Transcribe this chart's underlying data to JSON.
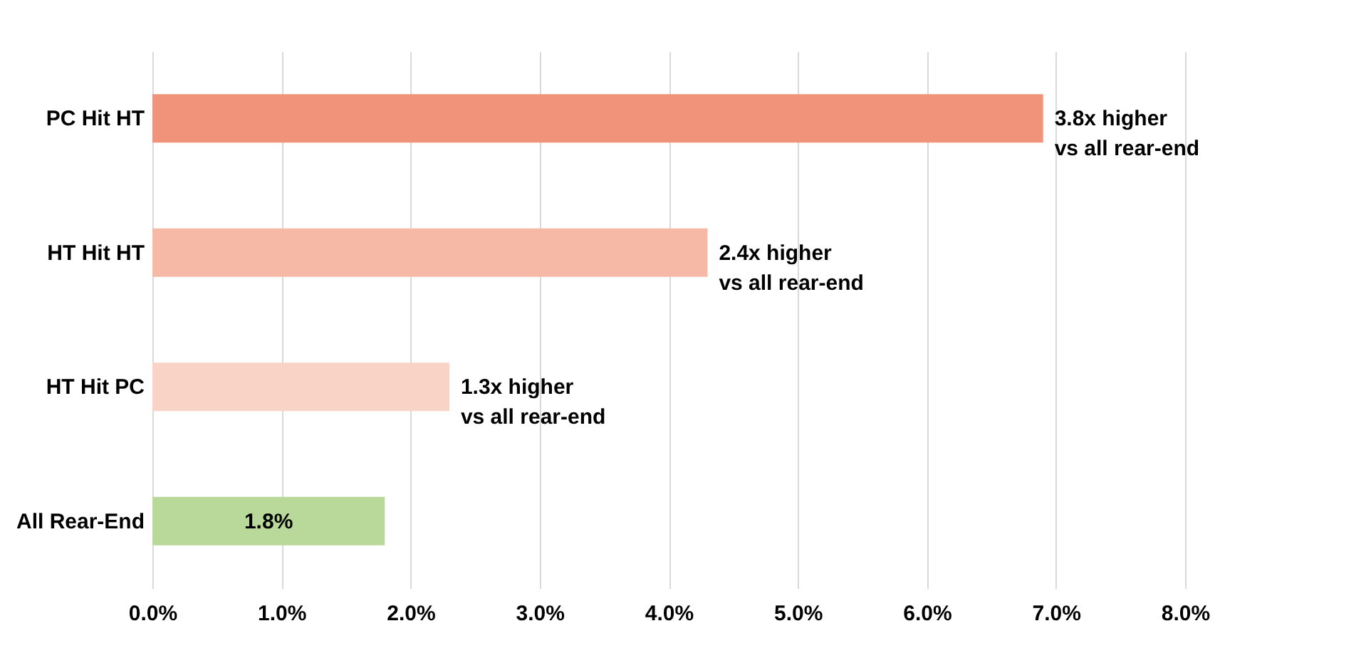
{
  "chart_data": {
    "type": "bar",
    "orientation": "horizontal",
    "categories": [
      "PC Hit HT",
      "HT Hit HT",
      "HT Hit PC",
      "All Rear-End"
    ],
    "values": [
      6.9,
      4.3,
      2.3,
      1.8
    ],
    "colors": [
      "#f0937a",
      "#f5b9a5",
      "#fad3c7",
      "#b9d99b"
    ],
    "value_labels": [
      null,
      null,
      null,
      "1.8%"
    ],
    "annotations": [
      {
        "text": "3.8x higher\nvs all rear-end",
        "x": 6.9,
        "y": "PC Hit HT"
      },
      {
        "text": "2.4x higher\nvs all rear-end",
        "x": 4.3,
        "y": "HT Hit HT"
      },
      {
        "text": "1.3x higher\nvs all rear-end",
        "x": 2.3,
        "y": "HT Hit PC"
      }
    ],
    "xlim": [
      0,
      8
    ],
    "xticks": [
      {
        "value": 0,
        "label": "0.0%"
      },
      {
        "value": 1,
        "label": "1.0%"
      },
      {
        "value": 2,
        "label": "2.0%"
      },
      {
        "value": 3,
        "label": "3.0%"
      },
      {
        "value": 4,
        "label": "4.0%"
      },
      {
        "value": 5,
        "label": "5.0%"
      },
      {
        "value": 6,
        "label": "6.0%"
      },
      {
        "value": 7,
        "label": "7.0%"
      },
      {
        "value": 8,
        "label": "8.0%"
      }
    ],
    "grid": "x",
    "legend": false
  }
}
